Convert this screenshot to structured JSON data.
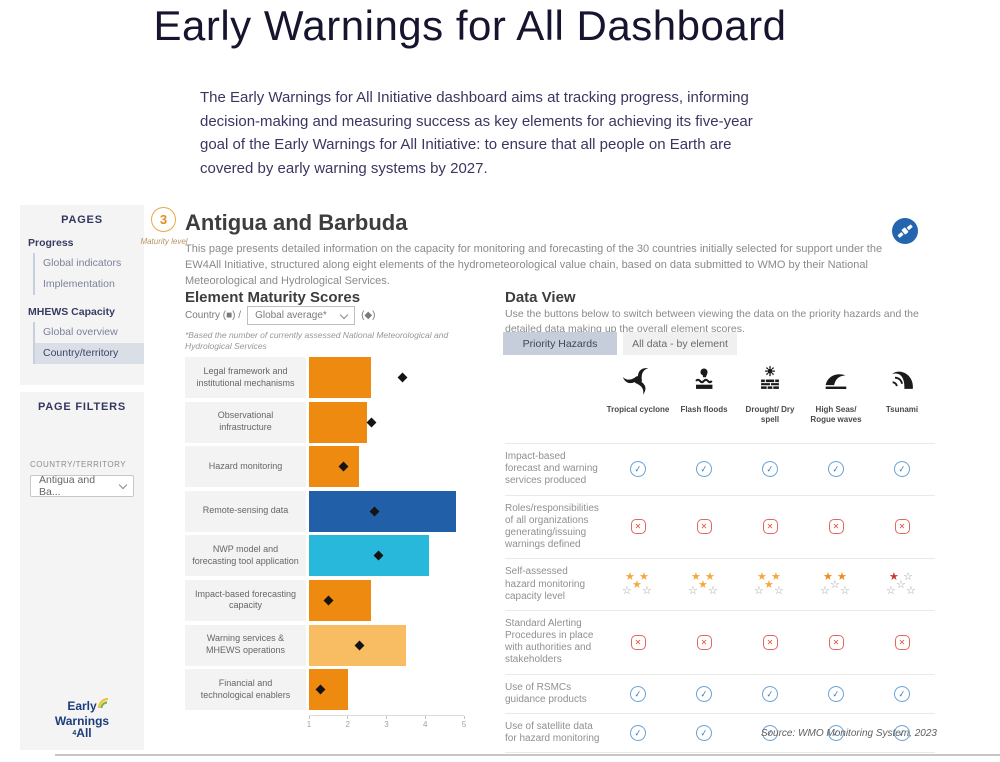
{
  "page": {
    "title": "Early Warnings for All Dashboard",
    "intro": "The Early Warnings for All Initiative dashboard aims at tracking progress, informing decision-making and measuring success as key elements for achieving its five-year goal of the Early Warnings for All Initiative: to ensure that all people on Earth are covered by early warning systems by 2027."
  },
  "sidebar": {
    "pages_header": "PAGES",
    "sections": [
      {
        "title": "Progress",
        "items": [
          {
            "label": "Global indicators",
            "selected": false
          },
          {
            "label": "Implementation",
            "selected": false
          }
        ]
      },
      {
        "title": "MHEWS Capacity",
        "items": [
          {
            "label": "Global overview",
            "selected": false
          },
          {
            "label": "Country/territory",
            "selected": true
          }
        ]
      }
    ],
    "filters_header": "PAGE FILTERS",
    "filter_label": "COUNTRY/TERRITORY",
    "filter_value": "Antigua and Ba...",
    "logo": {
      "line1": "Early",
      "line2": "Warnings",
      "line3_prefix": "4",
      "line3": "All"
    }
  },
  "header": {
    "maturity_value": "3",
    "maturity_label": "Maturity level",
    "country_title": "Antigua and Barbuda",
    "description": "This page presents detailed information on the capacity for monitoring and forecasting of the 30 countries initially selected for support under the EW4All Initiative, structured along eight elements of the hydrometeorological value chain, based on data submitted to WMO by their National Meteorological and Hydrological Services."
  },
  "chart_data": {
    "type": "bar",
    "orientation": "horizontal",
    "title": "Element Maturity Scores",
    "legend_prefix": "Country (■) /",
    "dropdown_value": "Global average*",
    "legend_suffix": "(◆)",
    "footnote": "*Based the number of currently assessed National Meteorological and Hydrological Services",
    "categories": [
      "Legal framework and institutional mechanisms",
      "Observational infrastructure",
      "Hazard monitoring",
      "Remote-sensing data",
      "NWP model and forecasting tool application",
      "Impact-based forecasting capacity",
      "Warning services & MHEWS operations",
      "Financial and technological enablers"
    ],
    "series": [
      {
        "name": "Country",
        "marker": "bar",
        "values": [
          2.6,
          2.5,
          2.3,
          4.8,
          4.1,
          2.6,
          3.5,
          2.0
        ]
      },
      {
        "name": "Global average",
        "marker": "diamond",
        "values": [
          3.4,
          2.6,
          1.9,
          2.7,
          2.8,
          1.5,
          2.3,
          1.3
        ]
      }
    ],
    "bar_colors": [
      "#EF8A10",
      "#EF8A10",
      "#EF8A10",
      "#2160A8",
      "#28B8DC",
      "#EF8A10",
      "#F8BC62",
      "#EF8A10"
    ],
    "xlim": [
      1,
      5
    ],
    "ticks": [
      1,
      2,
      3,
      4,
      5
    ],
    "xlabel": "",
    "ylabel": ""
  },
  "data_view": {
    "title": "Data View",
    "description": "Use the buttons below to switch between viewing the data on the priority hazards and the detailed data making up the overall element scores.",
    "buttons": [
      {
        "label": "Priority Hazards",
        "active": true
      },
      {
        "label": "All data - by element",
        "active": false
      }
    ],
    "hazards": [
      {
        "label": "Tropical cyclone",
        "icon": "tropical-cyclone-icon"
      },
      {
        "label": "Flash floods",
        "icon": "flash-floods-icon"
      },
      {
        "label": "Drought/ Dry spell",
        "icon": "drought-icon"
      },
      {
        "label": "High Seas/ Rogue waves",
        "icon": "rogue-waves-icon"
      },
      {
        "label": "Tsunami",
        "icon": "tsunami-icon"
      }
    ],
    "rows": [
      {
        "label": "Impact-based forecast and warning services produced",
        "cells": [
          "check",
          "check",
          "check",
          "check",
          "check"
        ]
      },
      {
        "label": "Roles/responsibilities of all organizations generating/issuing warnings defined",
        "cells": [
          "cross",
          "cross",
          "cross",
          "cross",
          "cross"
        ]
      },
      {
        "label": "Self-assessed hazard monitoring capacity level",
        "cells": [
          {
            "stars": 3,
            "color": "#F4A93D"
          },
          {
            "stars": 3,
            "color": "#F4A93D"
          },
          {
            "stars": 3,
            "color": "#F4A93D"
          },
          {
            "stars": 2,
            "color": "#EF8B1F"
          },
          {
            "stars": 1,
            "color": "#C63A31"
          }
        ]
      },
      {
        "label": "Standard Alerting Procedures in place with authorities and stakeholders",
        "cells": [
          "cross",
          "cross",
          "cross",
          "cross",
          "cross"
        ]
      },
      {
        "label": "Use of RSMCs guidance products",
        "cells": [
          "check",
          "check",
          "check",
          "check",
          "check"
        ]
      },
      {
        "label": "Use of satellite data for hazard monitoring",
        "cells": [
          "check",
          "check",
          "check",
          "check",
          "check"
        ]
      }
    ],
    "source": "Source: WMO Monitoring System, 2023"
  }
}
